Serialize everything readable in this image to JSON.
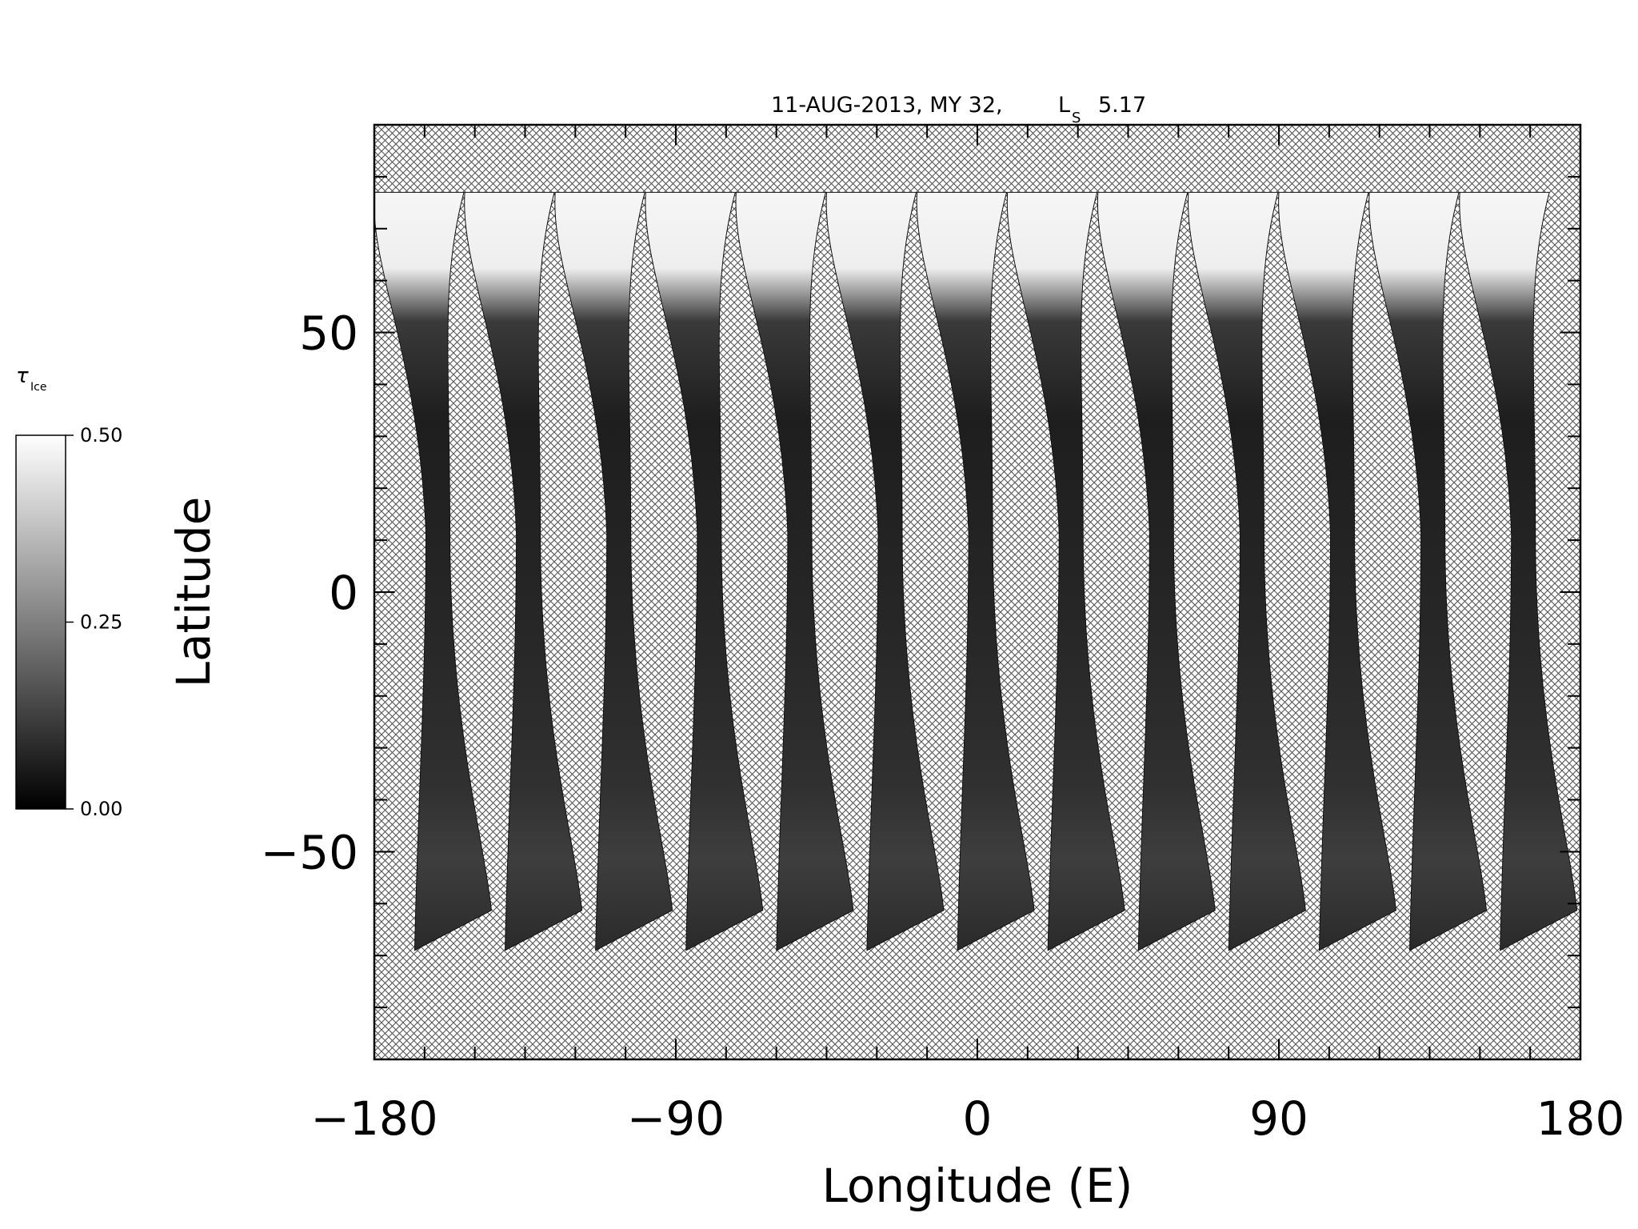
{
  "chart_data": {
    "type": "heatmap",
    "title_date": "11-AUG-2013, MY 32,",
    "title_ls": "L",
    "title_ls_sub": "S",
    "title_ls_value": "5.17",
    "xlabel": "Longitude (E)",
    "ylabel": "Latitude",
    "xlim": [
      -180,
      180
    ],
    "ylim": [
      -90,
      90
    ],
    "x_ticks": [
      -180,
      -90,
      0,
      90,
      180
    ],
    "x_tick_labels": [
      "−180",
      "−90",
      "0",
      "90",
      "180"
    ],
    "y_ticks": [
      50,
      0,
      -50
    ],
    "y_tick_labels": [
      "50",
      "0",
      "−50"
    ],
    "colorbar": {
      "label": "τ",
      "label_sub": "Ice",
      "min": 0.0,
      "max": 0.5,
      "ticks": [
        0.0,
        0.25,
        0.5
      ],
      "tick_labels": [
        "0.00",
        "0.25",
        "0.50"
      ],
      "low_color": "#000000",
      "high_color": "#ffffff"
    },
    "swaths": {
      "count": 13,
      "north_lat": 77,
      "south_lat": -69,
      "north_longitudes": [
        -180,
        -153,
        -126,
        -99,
        -72,
        -45,
        -18,
        9,
        36,
        63,
        90,
        117,
        144
      ],
      "south_longitudes": [
        -167,
        -140,
        -113,
        -86,
        -59,
        -32,
        -5,
        22,
        49,
        76,
        103,
        130,
        157
      ],
      "ice_cap_edge_lat": 55,
      "ice_cap_color": "#f4f4f4",
      "swath_color": "#222222"
    },
    "missing_data_pattern": "crosshatch",
    "grid": false
  }
}
